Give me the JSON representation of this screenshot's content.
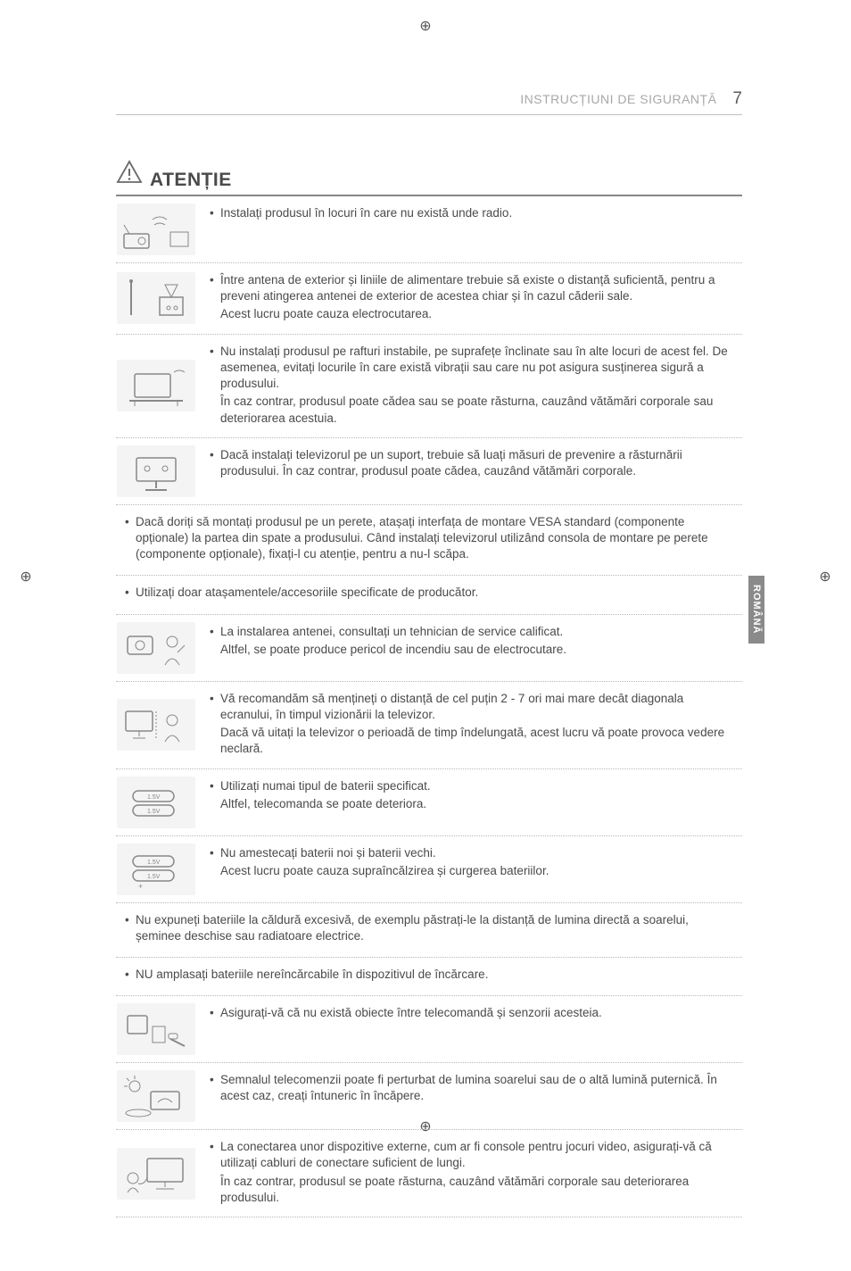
{
  "header": {
    "section_title": "INSTRUCȚIUNI DE SIGURANȚĂ",
    "page_number": "7"
  },
  "side_tab": "ROMÂNĂ",
  "caution_label": "ATENȚIE",
  "items": [
    {
      "icon": "radio",
      "lines": [
        "Instalați produsul în locuri în care nu există unde radio."
      ]
    },
    {
      "icon": "antenna",
      "lines": [
        "Între antena de exterior și liniile de alimentare trebuie să existe o distanță suficientă, pentru a preveni atingerea antenei de exterior de acestea chiar și în cazul căderii sale."
      ],
      "extra": [
        "Acest lucru poate cauza electrocutarea."
      ]
    },
    {
      "icon": "shelf",
      "lines": [
        "Nu instalați produsul pe rafturi instabile, pe suprafețe înclinate sau în alte locuri de acest fel. De asemenea, evitați locurile în care există vibrații sau care nu pot asigura susținerea sigură a produsului."
      ],
      "extra": [
        "În caz contrar, produsul poate cădea sau se poate răsturna, cauzând vătămări corporale sau deteriorarea acestuia."
      ]
    },
    {
      "icon": "stand",
      "lines": [
        "Dacă instalați televizorul pe un suport, trebuie să luați măsuri de prevenire a răsturnării produsului. În caz contrar, produsul poate cădea, cauzând vătămări corporale."
      ]
    },
    {
      "icon": null,
      "lines": [
        "Dacă doriți să montați produsul pe un perete, atașați interfața de montare VESA standard (componente opționale) la partea din spate a produsului. Când instalați televizorul utilizând consola de montare pe perete (componente opționale), fixați-l cu atenție, pentru a nu-l scăpa."
      ]
    },
    {
      "icon": null,
      "lines": [
        "Utilizați doar atașamentele/accesoriile specificate de producător."
      ]
    },
    {
      "icon": "technician",
      "lines": [
        "La instalarea antenei, consultați un tehnician de service calificat."
      ],
      "extra": [
        "Altfel, se poate produce pericol de incendiu sau de electrocutare."
      ]
    },
    {
      "icon": "distance",
      "lines": [
        "Vă recomandăm să mențineți o distanță de cel puțin 2 - 7 ori mai mare decât diagonala ecranului, în timpul vizionării la televizor."
      ],
      "extra": [
        "Dacă vă uitați la televizor o perioadă de timp îndelungată, acest lucru vă poate provoca vedere neclară."
      ]
    },
    {
      "icon": "battery",
      "lines": [
        "Utilizați numai tipul de baterii specificat."
      ],
      "extra": [
        "Altfel, telecomanda se poate deteriora."
      ]
    },
    {
      "icon": "battery-mix",
      "lines": [
        "Nu amestecați baterii noi și baterii vechi."
      ],
      "extra": [
        "Acest lucru poate cauza supraîncălzirea și curgerea bateriilor."
      ]
    },
    {
      "icon": null,
      "lines": [
        "Nu expuneți bateriile la căldură excesivă, de exemplu păstrați-le la distanță de lumina directă a soarelui, șeminee deschise sau radiatoare electrice."
      ]
    },
    {
      "icon": null,
      "lines": [
        "NU amplasați bateriile nereîncărcabile în dispozitivul de încărcare."
      ]
    },
    {
      "icon": "remote-obj",
      "lines": [
        "Asigurați-vă că nu există obiecte între telecomandă și senzorii acesteia."
      ]
    },
    {
      "icon": "sunlight",
      "lines": [
        "Semnalul telecomenzii poate fi perturbat de lumina soarelui sau de o altă lumină puternică. În acest caz, creați întuneric în încăpere."
      ]
    },
    {
      "icon": "console",
      "lines": [
        "La conectarea unor dispozitive externe, cum ar fi console pentru jocuri video, asigurați-vă că utilizați cabluri de conectare suficient de lungi."
      ],
      "extra": [
        "În caz contrar, produsul se poate răsturna, cauzând vătămări corporale sau deteriorarea produsului."
      ]
    }
  ],
  "colors": {
    "text": "#4a4a4a",
    "muted": "#a8a8a8",
    "rule": "#888888",
    "dotted": "#b8b8b8",
    "tab_bg": "#8a8a8a",
    "icon_bg": "#f4f4f4"
  }
}
